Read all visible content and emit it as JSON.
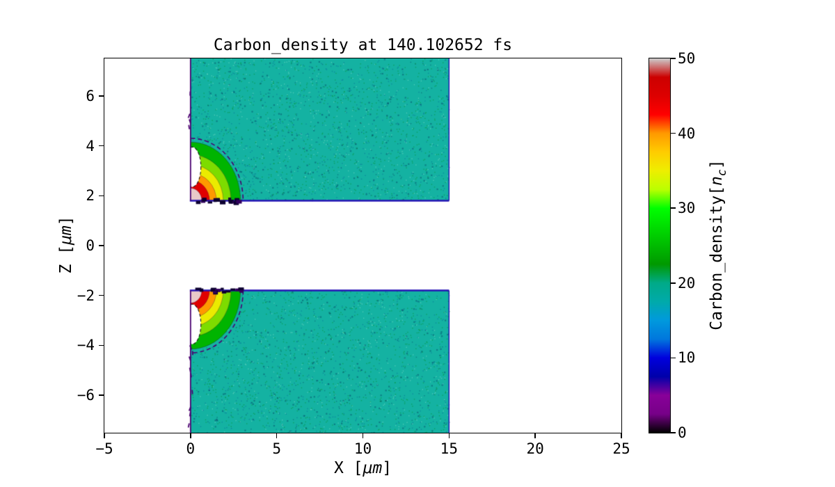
{
  "title": "Carbon_density at 140.102652 fs",
  "axes": {
    "xlabel": {
      "prefix": "X [",
      "unit": "μm",
      "suffix": "]"
    },
    "ylabel": {
      "prefix": "Z [",
      "unit": "μm",
      "suffix": "]"
    },
    "xtick_labels": [
      "−5",
      "0",
      "5",
      "10",
      "15",
      "20",
      "25"
    ],
    "ytick_labels": [
      "6",
      "4",
      "2",
      "0",
      "−2",
      "−4",
      "−6"
    ]
  },
  "colorbar": {
    "label_parts": {
      "main": "Carbon_density[",
      "var": "n",
      "sub": "c",
      "close": "]"
    },
    "tick_labels": [
      "0",
      "10",
      "20",
      "30",
      "40",
      "50"
    ],
    "min": 0,
    "max": 50,
    "stops": [
      {
        "frac": 0.0,
        "color": "#000000"
      },
      {
        "frac": 0.05,
        "color": "#770088"
      },
      {
        "frac": 0.1,
        "color": "#880099"
      },
      {
        "frac": 0.15,
        "color": "#0000aa"
      },
      {
        "frac": 0.2,
        "color": "#0000dd"
      },
      {
        "frac": 0.25,
        "color": "#0077dd"
      },
      {
        "frac": 0.3,
        "color": "#0099dd"
      },
      {
        "frac": 0.35,
        "color": "#00aaaa"
      },
      {
        "frac": 0.4,
        "color": "#00aa88"
      },
      {
        "frac": 0.45,
        "color": "#009900"
      },
      {
        "frac": 0.5,
        "color": "#00bb00"
      },
      {
        "frac": 0.55,
        "color": "#00dd00"
      },
      {
        "frac": 0.6,
        "color": "#00ff00"
      },
      {
        "frac": 0.65,
        "color": "#bbff00"
      },
      {
        "frac": 0.7,
        "color": "#eeee00"
      },
      {
        "frac": 0.75,
        "color": "#ffcc00"
      },
      {
        "frac": 0.8,
        "color": "#ff9900"
      },
      {
        "frac": 0.85,
        "color": "#ff0000"
      },
      {
        "frac": 0.9,
        "color": "#dd0000"
      },
      {
        "frac": 0.95,
        "color": "#cc0000"
      },
      {
        "frac": 1.0,
        "color": "#cccccc"
      }
    ]
  },
  "chart_data": {
    "type": "heatmap",
    "title": "Carbon_density at 140.102652 fs",
    "quantity": "Carbon_density",
    "time_fs": 140.102652,
    "units": "n_c",
    "xlabel": "X [μm]",
    "ylabel": "Z [μm]",
    "xlim": [
      -5,
      25
    ],
    "zlim": [
      -7.5,
      7.5
    ],
    "xticks": [
      -5,
      0,
      5,
      10,
      15,
      20,
      25
    ],
    "yticks": [
      6,
      4,
      2,
      0,
      -2,
      -4,
      -6
    ],
    "value_range": [
      0,
      50
    ],
    "colormap": "nipy_spectral",
    "colorbar_ticks": [
      0,
      10,
      20,
      30,
      40,
      50
    ],
    "legend": "none",
    "grid": false,
    "slabs": [
      {
        "x": [
          0,
          15
        ],
        "z": [
          1.8,
          7.5
        ],
        "base_density_nc": 20
      },
      {
        "x": [
          0,
          15
        ],
        "z": [
          -7.5,
          -1.8
        ],
        "base_density_nc": 20
      }
    ],
    "edge_features": [
      {
        "corner": [
          0,
          1.8
        ],
        "side": "upper-inner-corner",
        "peak_density_nc": 50,
        "extent_x_um": 2.9,
        "extent_z_um": 2.4
      },
      {
        "corner": [
          0,
          -1.8
        ],
        "side": "lower-inner-corner",
        "peak_density_nc": 50,
        "extent_x_um": 2.9,
        "extent_z_um": 2.4
      }
    ],
    "contour_bands": [
      {
        "level_nc": 25,
        "rx_um": 2.9,
        "rz_um": 2.35,
        "color": "#00b400"
      },
      {
        "level_nc": 30,
        "rx_um": 2.35,
        "rz_um": 1.85,
        "color": "#7ddc00"
      },
      {
        "level_nc": 35,
        "rx_um": 1.9,
        "rz_um": 1.45,
        "color": "#ebeb00"
      },
      {
        "level_nc": 40,
        "rx_um": 1.5,
        "rz_um": 1.1,
        "color": "#ff9900"
      },
      {
        "level_nc": 45,
        "rx_um": 1.1,
        "rz_um": 0.82,
        "color": "#e00000"
      },
      {
        "level_nc": 50,
        "rx_um": 0.65,
        "rz_um": 0.5,
        "color": "#e9c9c9"
      }
    ],
    "base_color": "#14b2a2",
    "edge_line_color": "#2411b5",
    "contour_outline_color": "#4a0070"
  }
}
